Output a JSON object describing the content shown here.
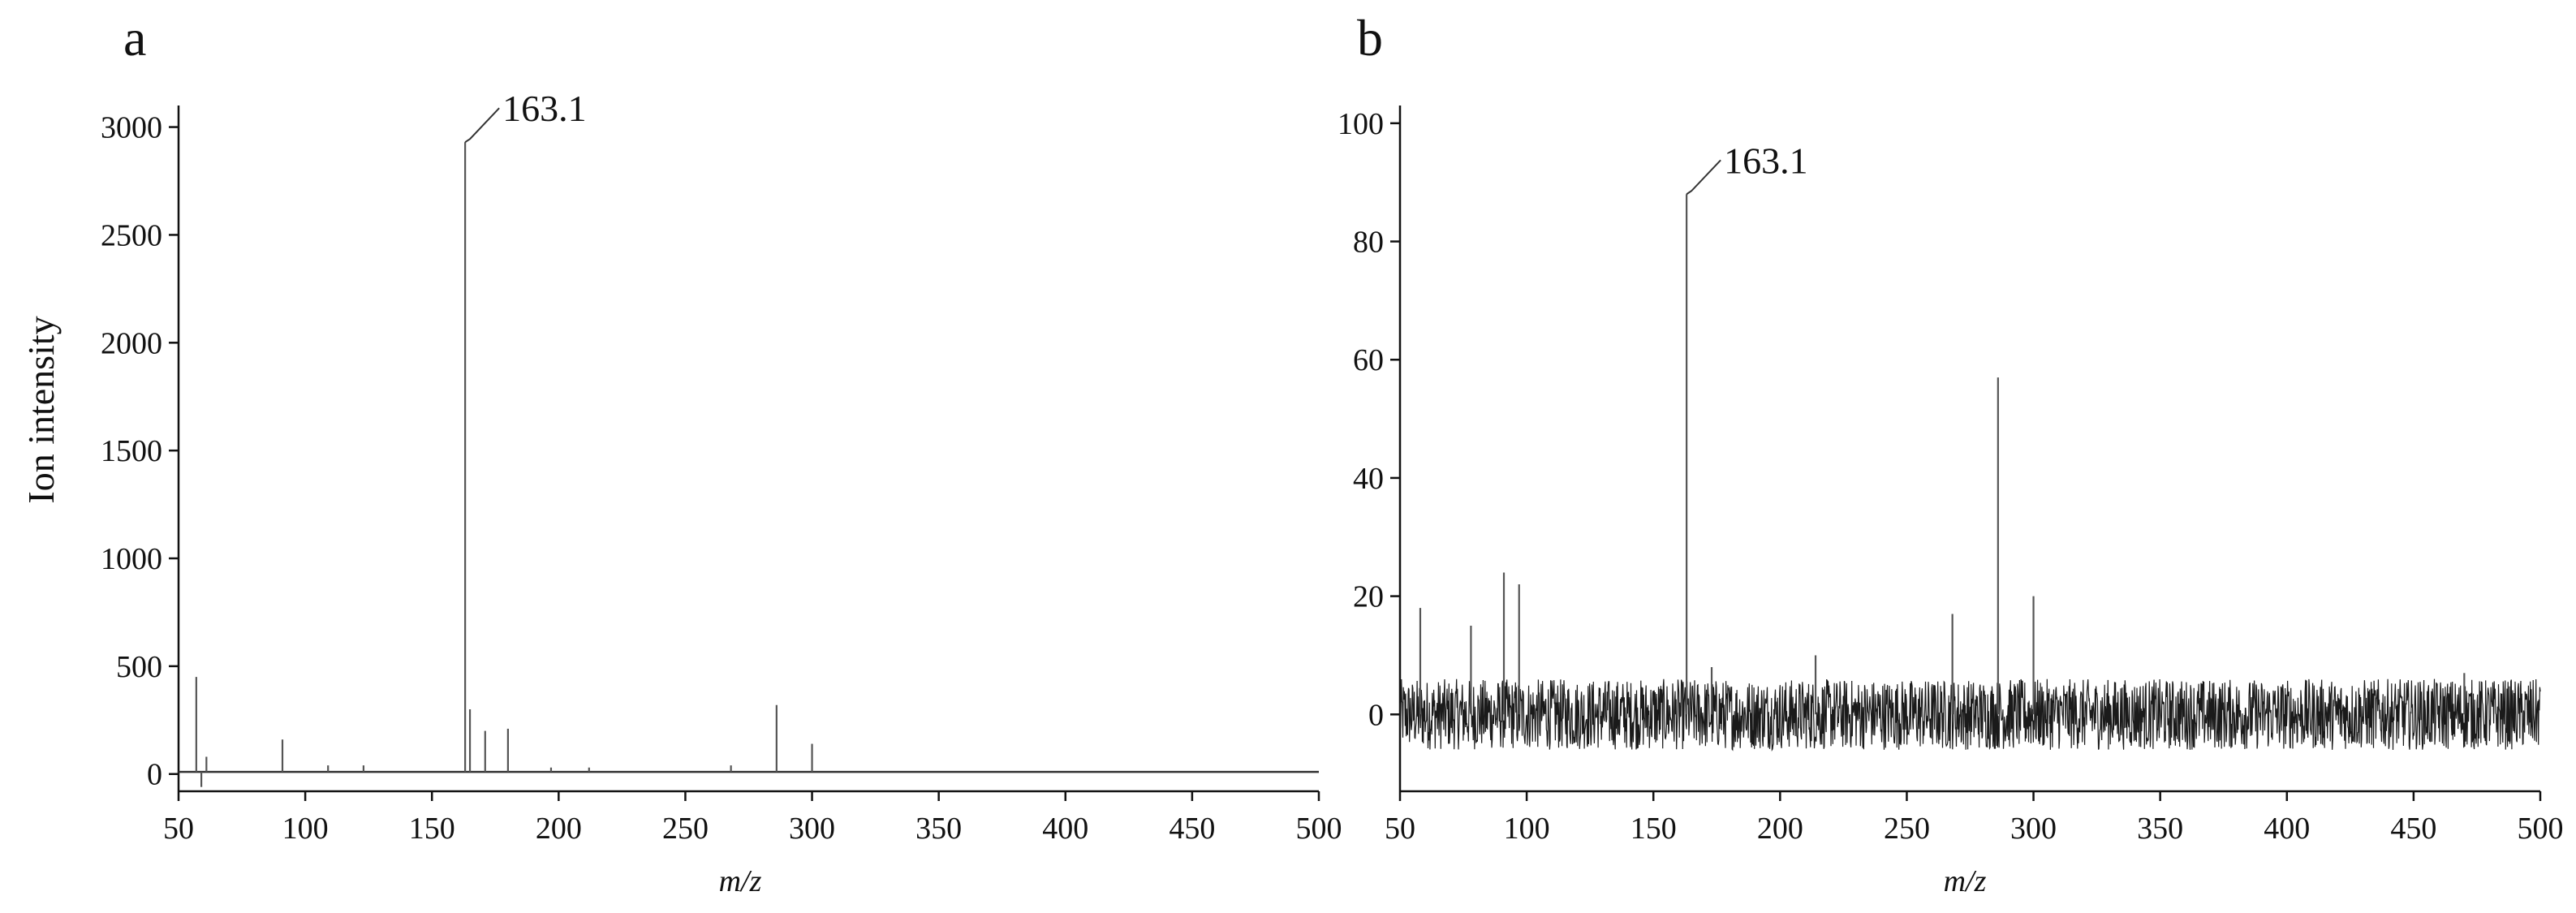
{
  "chart_data": [
    {
      "panel_label": "a",
      "type": "line",
      "chart_kind": "mass-spectrum",
      "xlabel": "m/z",
      "ylabel": "Ion intensity",
      "xlim": [
        50,
        500
      ],
      "ylim": [
        -80,
        3100
      ],
      "xticks": [
        50,
        100,
        150,
        200,
        250,
        300,
        350,
        400,
        450,
        500
      ],
      "yticks": [
        0,
        500,
        1000,
        1500,
        2000,
        2500,
        3000
      ],
      "baseline": 10,
      "annotation": {
        "text": "163.1",
        "x": 163.1,
        "y": 2930
      },
      "peaks": [
        {
          "x": 57,
          "y": 450
        },
        {
          "x": 59,
          "y": -60
        },
        {
          "x": 61,
          "y": 80
        },
        {
          "x": 91,
          "y": 160
        },
        {
          "x": 109,
          "y": 40
        },
        {
          "x": 123,
          "y": 40
        },
        {
          "x": 163.1,
          "y": 2930
        },
        {
          "x": 165,
          "y": 300
        },
        {
          "x": 171,
          "y": 200
        },
        {
          "x": 180,
          "y": 210
        },
        {
          "x": 197,
          "y": 30
        },
        {
          "x": 212,
          "y": 30
        },
        {
          "x": 268,
          "y": 40
        },
        {
          "x": 286,
          "y": 320
        },
        {
          "x": 300,
          "y": 140
        }
      ]
    },
    {
      "panel_label": "b",
      "type": "line",
      "chart_kind": "mass-spectrum",
      "xlabel": "m/z",
      "ylabel": "",
      "xlim": [
        50,
        500
      ],
      "ylim": [
        -13,
        103
      ],
      "xticks": [
        50,
        100,
        150,
        200,
        250,
        300,
        350,
        400,
        450,
        500
      ],
      "yticks": [
        0,
        20,
        40,
        60,
        80,
        100
      ],
      "baseline": 0,
      "noise_amplitude": 6,
      "annotation": {
        "text": "163.1",
        "x": 163.1,
        "y": 88
      },
      "peaks": [
        {
          "x": 58,
          "y": 18
        },
        {
          "x": 78,
          "y": 15
        },
        {
          "x": 91,
          "y": 24
        },
        {
          "x": 97,
          "y": 22
        },
        {
          "x": 163.1,
          "y": 88
        },
        {
          "x": 173,
          "y": 8
        },
        {
          "x": 214,
          "y": 10
        },
        {
          "x": 268,
          "y": 17
        },
        {
          "x": 286,
          "y": 57
        },
        {
          "x": 300,
          "y": 20
        },
        {
          "x": 470,
          "y": 7
        }
      ]
    }
  ]
}
